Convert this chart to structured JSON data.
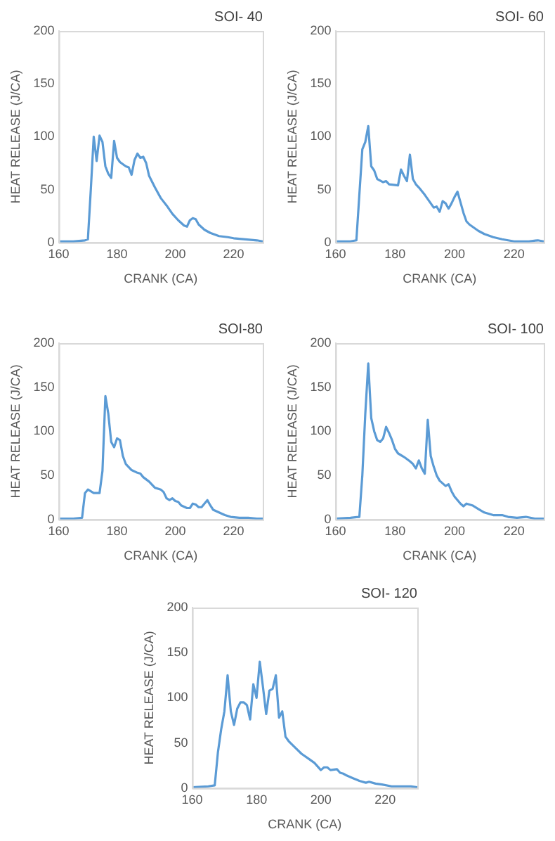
{
  "chart_data": [
    {
      "type": "line",
      "title": "SOI- 40",
      "xlabel": "CRANK (CA)",
      "ylabel": "HEAT RELEASE (J/CA)",
      "xlim": [
        160,
        230
      ],
      "xticks": [
        160,
        180,
        200,
        220
      ],
      "ylim": [
        0,
        200
      ],
      "yticks": [
        0,
        50,
        100,
        150,
        200
      ],
      "marker": "none",
      "x": [
        160,
        165,
        169,
        170,
        171,
        172,
        173,
        174,
        175,
        176,
        177,
        178,
        179,
        180,
        181,
        183,
        184,
        185,
        186,
        187,
        188,
        189,
        190,
        191,
        193,
        195,
        197,
        199,
        201,
        203,
        204,
        205,
        206,
        207,
        208,
        210,
        212,
        215,
        218,
        220,
        224,
        228,
        230
      ],
      "series": [
        {
          "color": "#5b9bd5",
          "values": [
            1,
            1,
            2,
            3,
            50,
            100,
            77,
            101,
            95,
            72,
            65,
            61,
            96,
            80,
            76,
            72,
            71,
            64,
            78,
            84,
            80,
            81,
            75,
            63,
            52,
            42,
            35,
            27,
            21,
            16,
            15,
            21,
            23,
            22,
            17,
            12,
            9,
            6,
            5,
            4,
            3,
            2,
            1
          ]
        }
      ]
    },
    {
      "type": "line",
      "title": "SOI- 60",
      "xlabel": "CRANK (CA)",
      "ylabel": "HEAT RELEASE (J/CA)",
      "xlim": [
        160,
        230
      ],
      "xticks": [
        160,
        180,
        200,
        220
      ],
      "ylim": [
        0,
        200
      ],
      "yticks": [
        0,
        50,
        100,
        150,
        200
      ],
      "marker": "none",
      "x": [
        160,
        165,
        167,
        168,
        169,
        170,
        171,
        172,
        173,
        174,
        176,
        177,
        178,
        181,
        182,
        183,
        184,
        185,
        186,
        187,
        188,
        190,
        192,
        193,
        194,
        195,
        196,
        197,
        198,
        199,
        200,
        201,
        202,
        203,
        204,
        205,
        206,
        208,
        210,
        213,
        216,
        220,
        225,
        228,
        230
      ],
      "series": [
        {
          "color": "#5b9bd5",
          "values": [
            1,
            1,
            2,
            45,
            88,
            95,
            110,
            72,
            68,
            60,
            57,
            58,
            55,
            54,
            69,
            63,
            58,
            83,
            60,
            55,
            52,
            45,
            37,
            33,
            34,
            29,
            39,
            37,
            32,
            37,
            43,
            48,
            38,
            28,
            20,
            17,
            15,
            11,
            8,
            5,
            3,
            1,
            1,
            2,
            1
          ]
        }
      ]
    },
    {
      "type": "line",
      "title": "SOI-80",
      "xlabel": "CRANK (CA)",
      "ylabel": "HEAT RELEASE (J/CA)",
      "xlim": [
        160,
        230
      ],
      "xticks": [
        160,
        180,
        200,
        220
      ],
      "ylim": [
        0,
        200
      ],
      "yticks": [
        0,
        50,
        100,
        150,
        200
      ],
      "marker": "none",
      "x": [
        160,
        165,
        168,
        169,
        170,
        171,
        172,
        174,
        175,
        176,
        177,
        178,
        179,
        180,
        181,
        182,
        183,
        185,
        187,
        188,
        189,
        191,
        193,
        195,
        196,
        197,
        198,
        199,
        200,
        201,
        202,
        204,
        205,
        206,
        207,
        208,
        209,
        210,
        211,
        212,
        213,
        215,
        217,
        219,
        222,
        225,
        228,
        230
      ],
      "series": [
        {
          "color": "#5b9bd5",
          "values": [
            1,
            1,
            2,
            30,
            34,
            32,
            30,
            30,
            55,
            140,
            120,
            88,
            82,
            92,
            90,
            72,
            63,
            56,
            53,
            52,
            48,
            43,
            36,
            34,
            31,
            24,
            22,
            24,
            21,
            20,
            16,
            13,
            13,
            18,
            17,
            14,
            14,
            18,
            22,
            16,
            11,
            8,
            5,
            3,
            2,
            2,
            1,
            1
          ]
        }
      ]
    },
    {
      "type": "line",
      "title": "SOI- 100",
      "xlabel": "CRANK (CA)",
      "ylabel": "HEAT RELEASE (J/CA)",
      "xlim": [
        160,
        230
      ],
      "xticks": [
        160,
        180,
        200,
        220
      ],
      "ylim": [
        0,
        200
      ],
      "yticks": [
        0,
        50,
        100,
        150,
        200
      ],
      "marker": "none",
      "x": [
        160,
        165,
        168,
        169,
        170,
        171,
        172,
        173,
        174,
        175,
        176,
        177,
        178,
        179,
        180,
        181,
        183,
        185,
        186,
        187,
        188,
        189,
        190,
        191,
        192,
        193,
        194,
        195,
        197,
        198,
        199,
        200,
        202,
        203,
        204,
        206,
        208,
        210,
        213,
        216,
        218,
        221,
        224,
        227,
        230
      ],
      "series": [
        {
          "color": "#5b9bd5",
          "values": [
            1,
            2,
            3,
            50,
            120,
            177,
            115,
            100,
            90,
            88,
            92,
            105,
            98,
            90,
            80,
            75,
            71,
            66,
            63,
            58,
            67,
            58,
            52,
            113,
            72,
            60,
            50,
            44,
            38,
            40,
            32,
            26,
            18,
            15,
            18,
            16,
            12,
            8,
            5,
            5,
            3,
            2,
            3,
            1,
            1
          ]
        }
      ]
    },
    {
      "type": "line",
      "title": "SOI- 120",
      "xlabel": "CRANK (CA)",
      "ylabel": "HEAT RELEASE (J/CA)",
      "xlim": [
        160,
        230
      ],
      "xticks": [
        160,
        180,
        200,
        220
      ],
      "ylim": [
        0,
        200
      ],
      "yticks": [
        0,
        50,
        100,
        150,
        200
      ],
      "marker": "none",
      "x": [
        160,
        165,
        167,
        168,
        169,
        170,
        171,
        172,
        173,
        174,
        175,
        176,
        177,
        178,
        179,
        180,
        181,
        182,
        183,
        184,
        185,
        186,
        187,
        188,
        189,
        190,
        192,
        194,
        196,
        198,
        200,
        201,
        202,
        203,
        205,
        206,
        207,
        208,
        210,
        212,
        214,
        215,
        217,
        219,
        222,
        226,
        228,
        230
      ],
      "series": [
        {
          "color": "#5b9bd5",
          "values": [
            1,
            2,
            3,
            40,
            65,
            85,
            125,
            85,
            70,
            88,
            95,
            95,
            92,
            76,
            115,
            100,
            140,
            112,
            82,
            108,
            110,
            125,
            78,
            85,
            57,
            52,
            45,
            38,
            33,
            28,
            20,
            23,
            23,
            20,
            21,
            17,
            16,
            14,
            11,
            8,
            6,
            7,
            5,
            4,
            2,
            2,
            2,
            1
          ]
        }
      ]
    }
  ]
}
